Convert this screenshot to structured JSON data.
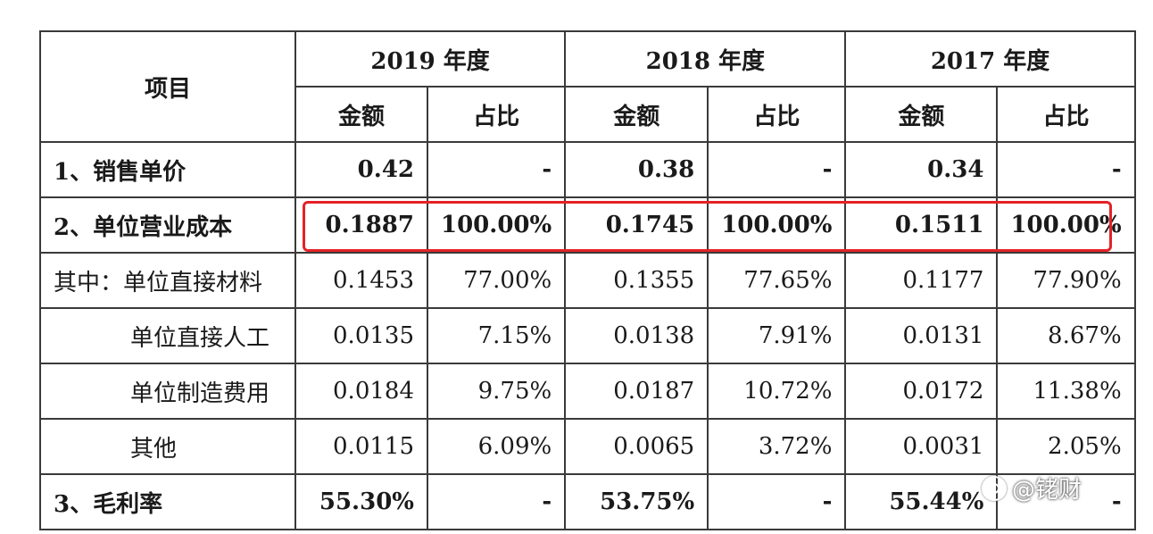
{
  "header": {
    "item": "项目",
    "years": [
      "2019 年度",
      "2018 年度",
      "2017 年度"
    ],
    "amount": "金额",
    "ratio": "占比"
  },
  "rows": [
    {
      "label": "1、销售单价",
      "v": [
        "0.42",
        "-",
        "0.38",
        "-",
        "0.34",
        "-"
      ]
    },
    {
      "label": "2、单位营业成本",
      "v": [
        "0.1887",
        "100.00%",
        "0.1745",
        "100.00%",
        "0.1511",
        "100.00%"
      ]
    },
    {
      "label": "其中：单位直接材料",
      "v": [
        "0.1453",
        "77.00%",
        "0.1355",
        "77.65%",
        "0.1177",
        "77.90%"
      ]
    },
    {
      "label": "单位直接人工",
      "v": [
        "0.0135",
        "7.15%",
        "0.0138",
        "7.91%",
        "0.0131",
        "8.67%"
      ]
    },
    {
      "label": "单位制造费用",
      "v": [
        "0.0184",
        "9.75%",
        "0.0187",
        "10.72%",
        "0.0172",
        "11.38%"
      ]
    },
    {
      "label": "其他",
      "v": [
        "0.0115",
        "6.09%",
        "0.0065",
        "3.72%",
        "0.0031",
        "2.05%"
      ]
    },
    {
      "label": "3、毛利率",
      "v": [
        "55.30%",
        "-",
        "53.75%",
        "-",
        "55.44%",
        "-"
      ]
    }
  ],
  "highlight_color": "#e32227",
  "watermark": "@铑财"
}
